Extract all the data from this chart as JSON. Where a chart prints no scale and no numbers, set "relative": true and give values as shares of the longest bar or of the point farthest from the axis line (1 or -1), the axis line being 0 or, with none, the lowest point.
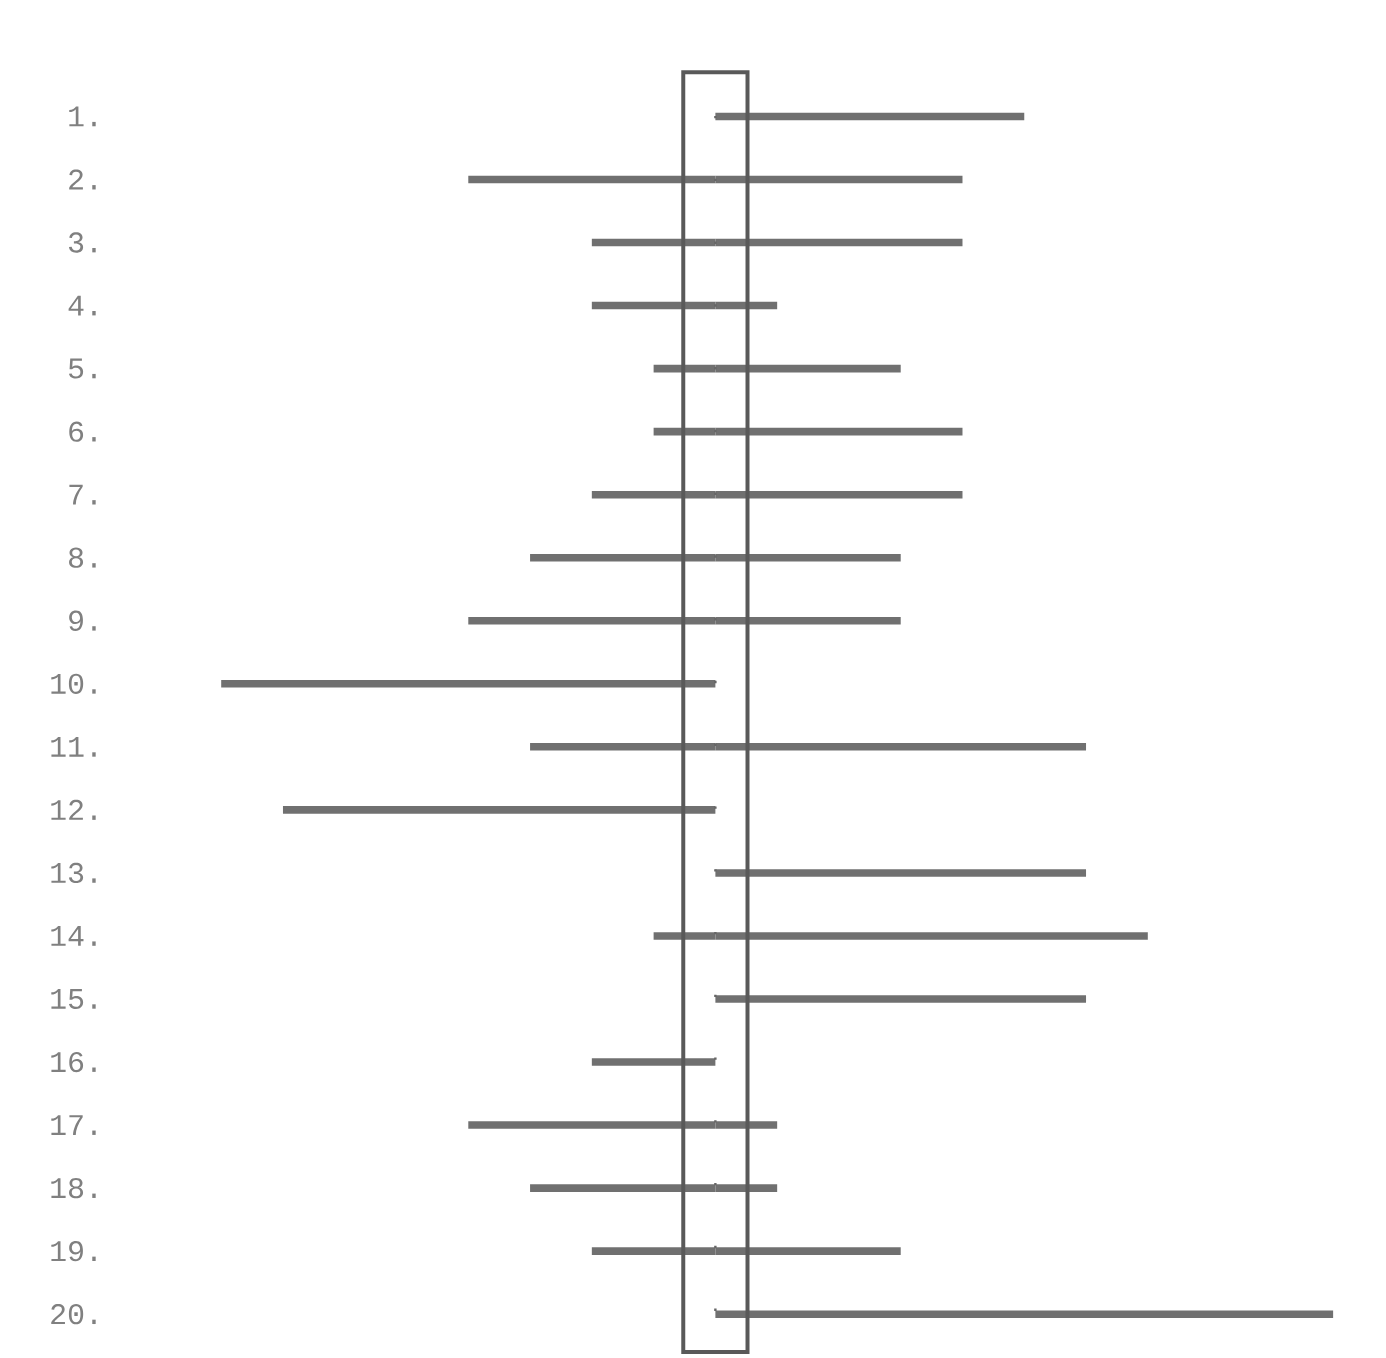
{
  "chart_data": {
    "type": "bar",
    "orientation": "horizontal",
    "relative": true,
    "stacked": true,
    "categories": [
      "1.",
      "2.",
      "3.",
      "4.",
      "5.",
      "6.",
      "7.",
      "8.",
      "9.",
      "10.",
      "11.",
      "12.",
      "13.",
      "14.",
      "15.",
      "16.",
      "17.",
      "18.",
      "19.",
      "20."
    ],
    "series": [
      {
        "color": "#707070",
        "values": [
          0,
          -0.4,
          -0.2,
          -0.2,
          -0.1,
          -0.1,
          -0.2,
          -0.3,
          -0.4,
          -0.8,
          -0.3,
          -0.7,
          0,
          -0.1,
          0,
          -0.2,
          -0.4,
          -0.3,
          -0.2,
          0
        ]
      },
      {
        "color": "#707070",
        "values": [
          0.5,
          0.4,
          0.4,
          0.1,
          0.3,
          0.4,
          0.4,
          0.3,
          0.3,
          0,
          0.6,
          0,
          0.6,
          0.7,
          0.6,
          0,
          0.1,
          0.1,
          0.3,
          1
        ]
      }
    ],
    "ref_lines": [
      {
        "axis": "x",
        "value": 0,
        "color": "#666666",
        "line_style": "dotted"
      }
    ]
  }
}
